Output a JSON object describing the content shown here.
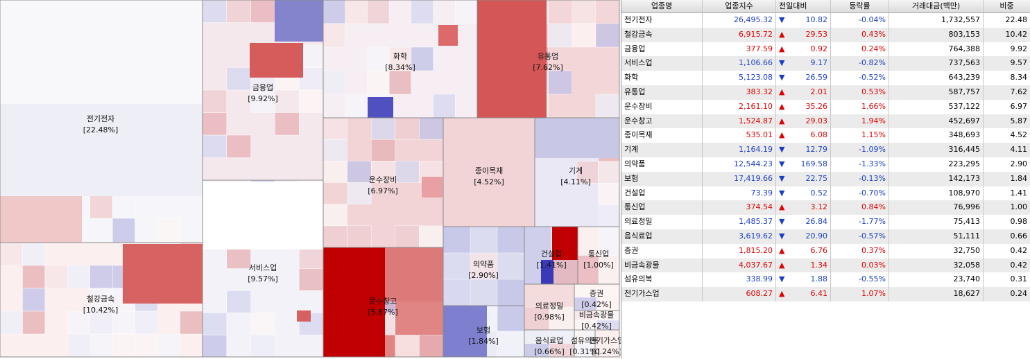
{
  "treemap": {
    "tiles": [
      {
        "name": "전기전자",
        "share": "[22.48%]"
      },
      {
        "name": "철강금속",
        "share": "[10.42%]"
      },
      {
        "name": "금융업",
        "share": "[9.92%]"
      },
      {
        "name": "서비스업",
        "share": "[9.57%]"
      },
      {
        "name": "화학",
        "share": "[8.34%]"
      },
      {
        "name": "유통업",
        "share": "[7.62%]"
      },
      {
        "name": "운수장비",
        "share": "[6.97%]"
      },
      {
        "name": "운수창고",
        "share": "[5.87%]"
      },
      {
        "name": "종이목재",
        "share": "[4.52%]"
      },
      {
        "name": "기계",
        "share": "[4.11%]"
      },
      {
        "name": "의약품",
        "share": "[2.90%]"
      },
      {
        "name": "보험",
        "share": "[1.84%]"
      },
      {
        "name": "건설업",
        "share": "[1.41%]"
      },
      {
        "name": "통신업",
        "share": "[1.00%]"
      },
      {
        "name": "의료정밀",
        "share": "[0.98%]"
      },
      {
        "name": "음식료업",
        "share": "[0.66%]"
      },
      {
        "name": "증권",
        "share": "[0.42%]"
      },
      {
        "name": "비금속광물",
        "share": "[0.42%]"
      },
      {
        "name": "섬유의복",
        "share": "[0.31%]"
      },
      {
        "name": "전기가스업",
        "share": "[0.24%]"
      }
    ]
  },
  "table": {
    "header": [
      "업종명",
      "업종지수",
      "전일대비",
      "등락률",
      "거래대금(백만)",
      "비중"
    ],
    "rows": [
      [
        "전기전자",
        "26,495.32",
        "▼",
        "10.82",
        "-0.04%",
        "1,732,557",
        "22.48"
      ],
      [
        "철강금속",
        "6,915.72",
        "▲",
        "29.53",
        "0.43%",
        "803,153",
        "10.42"
      ],
      [
        "금융업",
        "377.59",
        "▲",
        "0.92",
        "0.24%",
        "764,388",
        "9.92"
      ],
      [
        "서비스업",
        "1,106.66",
        "▼",
        "9.17",
        "-0.82%",
        "737,563",
        "9.57"
      ],
      [
        "화학",
        "5,123.08",
        "▼",
        "26.59",
        "-0.52%",
        "643,239",
        "8.34"
      ],
      [
        "유통업",
        "383.32",
        "▲",
        "2.01",
        "0.53%",
        "587,757",
        "7.62"
      ],
      [
        "운수장비",
        "2,161.10",
        "▲",
        "35.26",
        "1.66%",
        "537,122",
        "6.97"
      ],
      [
        "운수창고",
        "1,524.87",
        "▲",
        "29.03",
        "1.94%",
        "452,697",
        "5.87"
      ],
      [
        "종이목재",
        "535.01",
        "▲",
        "6.08",
        "1.15%",
        "348,693",
        "4.52"
      ],
      [
        "기계",
        "1,164.19",
        "▼",
        "12.79",
        "-1.09%",
        "316,445",
        "4.11"
      ],
      [
        "의약품",
        "12,544.23",
        "▼",
        "169.58",
        "-1.33%",
        "223,295",
        "2.90"
      ],
      [
        "보험",
        "17,419.66",
        "▼",
        "22.75",
        "-0.13%",
        "142,173",
        "1.84"
      ],
      [
        "건설업",
        "73.39",
        "▼",
        "0.52",
        "-0.70%",
        "108,970",
        "1.41"
      ],
      [
        "통신업",
        "374.54",
        "▲",
        "3.12",
        "0.84%",
        "76,996",
        "1.00"
      ],
      [
        "의료정밀",
        "1,485.37",
        "▼",
        "26.84",
        "-1.77%",
        "75,413",
        "0.98"
      ],
      [
        "음식료업",
        "3,619.62",
        "▼",
        "20.90",
        "-0.57%",
        "51,111",
        "0.66"
      ],
      [
        "증권",
        "1,815.20",
        "▲",
        "6.76",
        "0.37%",
        "32,750",
        "0.42"
      ],
      [
        "비금속광물",
        "4,037.67",
        "▲",
        "1.34",
        "0.03%",
        "32,058",
        "0.42"
      ],
      [
        "섬유의복",
        "338.99",
        "▼",
        "1.88",
        "-0.55%",
        "23,740",
        "0.31"
      ],
      [
        "전기가스업",
        "608.27",
        "▲",
        "6.41",
        "1.07%",
        "18,627",
        "0.24"
      ]
    ]
  }
}
